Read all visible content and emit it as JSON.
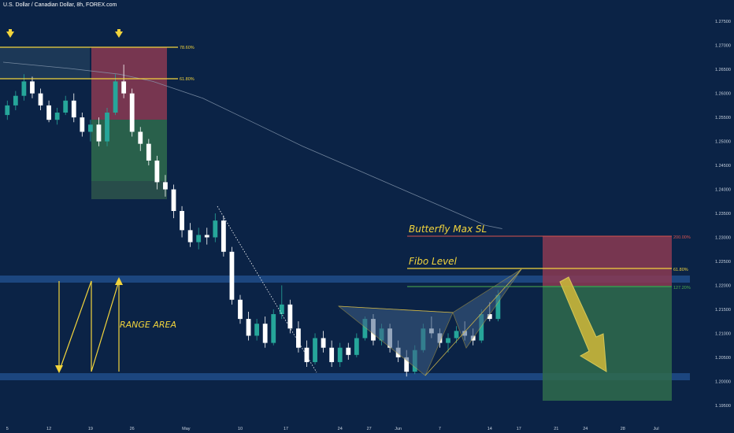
{
  "header": {
    "symbol_title": "U.S. Dollar / Canadian Dollar, 8h, FOREX.com"
  },
  "chart_data": {
    "type": "candlestick",
    "title": "U.S. Dollar / Canadian Dollar, 8h, FOREX.com",
    "ylim": [
      1.193,
      1.2775
    ],
    "yticks": [
      "1.27500",
      "1.27000",
      "1.26500",
      "1.26000",
      "1.25500",
      "1.25000",
      "1.24500",
      "1.24000",
      "1.23500",
      "1.23000",
      "1.22500",
      "1.22000",
      "1.21500",
      "1.21000",
      "1.20500",
      "1.20000",
      "1.19500"
    ],
    "xlim": [
      0,
      82
    ],
    "xticks": [
      {
        "x": 0.5,
        "label": "5"
      },
      {
        "x": 5.5,
        "label": "12"
      },
      {
        "x": 10.5,
        "label": "19"
      },
      {
        "x": 15.5,
        "label": "26"
      },
      {
        "x": 22,
        "label": "May"
      },
      {
        "x": 28.5,
        "label": "10"
      },
      {
        "x": 34,
        "label": "17"
      },
      {
        "x": 40.5,
        "label": "24"
      },
      {
        "x": 44,
        "label": "27"
      },
      {
        "x": 47.5,
        "label": "Jun"
      },
      {
        "x": 52.5,
        "label": "7"
      },
      {
        "x": 58.5,
        "label": "14"
      },
      {
        "x": 62,
        "label": "17"
      },
      {
        "x": 66.5,
        "label": "21"
      },
      {
        "x": 70,
        "label": "24"
      },
      {
        "x": 74.5,
        "label": "28"
      },
      {
        "x": 78.5,
        "label": "Jul"
      }
    ],
    "candles": [
      [
        1.2555,
        1.2585,
        1.2545,
        1.2575
      ],
      [
        1.2575,
        1.2605,
        1.2565,
        1.2595
      ],
      [
        1.2595,
        1.264,
        1.2585,
        1.2625
      ],
      [
        1.2625,
        1.2635,
        1.259,
        1.26
      ],
      [
        1.26,
        1.261,
        1.2565,
        1.2575
      ],
      [
        1.2575,
        1.2585,
        1.254,
        1.2545
      ],
      [
        1.2545,
        1.257,
        1.2535,
        1.256
      ],
      [
        1.256,
        1.2595,
        1.2555,
        1.2585
      ],
      [
        1.2585,
        1.26,
        1.254,
        1.255
      ],
      [
        1.255,
        1.256,
        1.251,
        1.252
      ],
      [
        1.252,
        1.2545,
        1.25,
        1.2535
      ],
      [
        1.2535,
        1.255,
        1.249,
        1.25
      ],
      [
        1.25,
        1.257,
        1.249,
        1.256
      ],
      [
        1.256,
        1.264,
        1.2555,
        1.2625
      ],
      [
        1.2625,
        1.266,
        1.259,
        1.26
      ],
      [
        1.26,
        1.261,
        1.251,
        1.252
      ],
      [
        1.252,
        1.253,
        1.248,
        1.2495
      ],
      [
        1.2495,
        1.2505,
        1.245,
        1.246
      ],
      [
        1.246,
        1.247,
        1.24,
        1.2415
      ],
      [
        1.2415,
        1.243,
        1.2385,
        1.24
      ],
      [
        1.24,
        1.241,
        1.234,
        1.2355
      ],
      [
        1.2355,
        1.2365,
        1.23,
        1.2315
      ],
      [
        1.2315,
        1.233,
        1.228,
        1.229
      ],
      [
        1.229,
        1.232,
        1.2275,
        1.2305
      ],
      [
        1.2305,
        1.232,
        1.2285,
        1.23
      ],
      [
        1.23,
        1.235,
        1.229,
        1.2335
      ],
      [
        1.2335,
        1.2345,
        1.226,
        1.227
      ],
      [
        1.227,
        1.228,
        1.216,
        1.217
      ],
      [
        1.217,
        1.218,
        1.212,
        1.213
      ],
      [
        1.213,
        1.2145,
        1.2085,
        1.2095
      ],
      [
        1.2095,
        1.213,
        1.2085,
        1.212
      ],
      [
        1.212,
        1.2135,
        1.207,
        1.208
      ],
      [
        1.208,
        1.215,
        1.2075,
        1.214
      ],
      [
        1.214,
        1.22,
        1.213,
        1.216
      ],
      [
        1.216,
        1.217,
        1.21,
        1.211
      ],
      [
        1.211,
        1.2125,
        1.206,
        1.207
      ],
      [
        1.207,
        1.2085,
        1.203,
        1.204
      ],
      [
        1.204,
        1.21,
        1.2035,
        1.209
      ],
      [
        1.209,
        1.2105,
        1.206,
        1.207
      ],
      [
        1.207,
        1.2085,
        1.203,
        1.204
      ],
      [
        1.204,
        1.208,
        1.203,
        1.207
      ],
      [
        1.207,
        1.208,
        1.2045,
        1.2055
      ],
      [
        1.2055,
        1.21,
        1.205,
        1.209
      ],
      [
        1.209,
        1.2135,
        1.2085,
        1.213
      ],
      [
        1.213,
        1.214,
        1.2075,
        1.2085
      ],
      [
        1.2085,
        1.212,
        1.2075,
        1.211
      ],
      [
        1.211,
        1.212,
        1.206,
        1.207
      ],
      [
        1.207,
        1.2085,
        1.204,
        1.205
      ],
      [
        1.205,
        1.2065,
        1.201,
        1.202
      ],
      [
        1.202,
        1.2075,
        1.2015,
        1.2065
      ],
      [
        1.2065,
        1.212,
        1.206,
        1.211
      ],
      [
        1.211,
        1.2135,
        1.209,
        1.21
      ],
      [
        1.21,
        1.211,
        1.207,
        1.208
      ],
      [
        1.208,
        1.21,
        1.206,
        1.209
      ],
      [
        1.209,
        1.2115,
        1.208,
        1.2105
      ],
      [
        1.2105,
        1.2125,
        1.2085,
        1.2095
      ],
      [
        1.2095,
        1.211,
        1.2075,
        1.2085
      ],
      [
        1.2085,
        1.215,
        1.208,
        1.214
      ],
      [
        1.214,
        1.2165,
        1.2125,
        1.213
      ],
      [
        1.213,
        1.219,
        1.2125,
        1.218
      ]
    ],
    "sma": [
      [
        0,
        1.2665
      ],
      [
        8,
        1.2652
      ],
      [
        14,
        1.264
      ],
      [
        18,
        1.2625
      ],
      [
        24,
        1.259
      ],
      [
        30,
        1.254
      ],
      [
        36,
        1.249
      ],
      [
        42,
        1.2445
      ],
      [
        48,
        1.24
      ],
      [
        54,
        1.2355
      ],
      [
        58,
        1.2325
      ],
      [
        60,
        1.2318
      ]
    ],
    "bull_color": "#26a69a",
    "bear_color": "#ffffff",
    "sma_color": "#8a9bb0"
  },
  "overlays": {
    "fib_labels": {
      "f786": "78.60%",
      "f618_left": "61.80%",
      "f618_right": "61.80%",
      "f1272": "127.20%",
      "f200": "200.00%"
    },
    "annotations": {
      "butterfly": "Butterfly Max SL",
      "fibo": "Fibo Level",
      "range": "RANGE AREA"
    },
    "colors": {
      "yellow": "#f2d43c",
      "band": "#1e4a85",
      "red": "#8b3a52",
      "green": "#2f6b4c",
      "pattern": "#3f5f86",
      "fib_green": "#4caf50",
      "fib_red": "#d9534f"
    }
  }
}
